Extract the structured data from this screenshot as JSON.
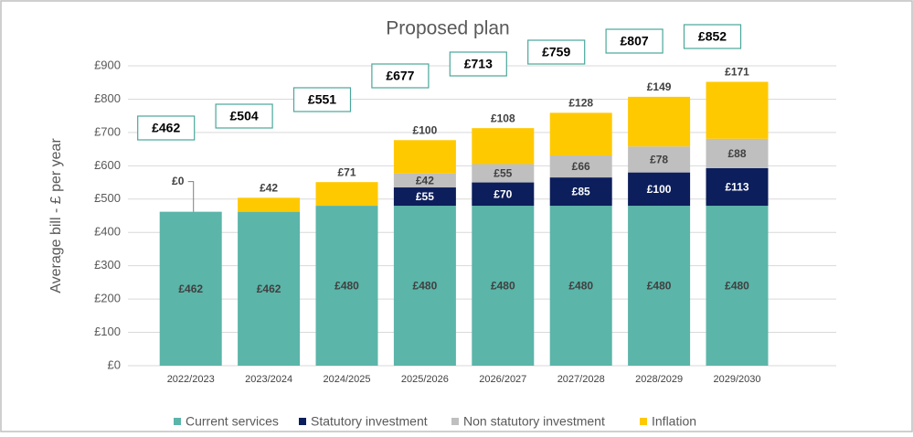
{
  "chart_data": {
    "type": "stacked_bar",
    "title": "Proposed plan",
    "ylabel": "Average bill - £ per year",
    "categories": [
      "2022/2023",
      "2023/2024",
      "2024/2025",
      "2025/2026",
      "2026/2027",
      "2027/2028",
      "2028/2029",
      "2029/2030"
    ],
    "series": [
      {
        "name": "Current services",
        "color": "#5bb5a9",
        "values": [
          462,
          462,
          480,
          480,
          480,
          480,
          480,
          480
        ],
        "value_labels": [
          "£462",
          "£462",
          "£480",
          "£480",
          "£480",
          "£480",
          "£480",
          "£480"
        ]
      },
      {
        "name": "Statutory investment",
        "color": "#0c1e5b",
        "values": [
          null,
          null,
          null,
          55,
          70,
          85,
          100,
          113
        ],
        "value_labels": [
          null,
          null,
          null,
          "£55",
          "£70",
          "£85",
          "£100",
          "£113"
        ]
      },
      {
        "name": "Non statutory investment",
        "color": "#bfbfbf",
        "values": [
          null,
          null,
          null,
          42,
          55,
          66,
          78,
          88
        ],
        "value_labels": [
          null,
          null,
          null,
          "£42",
          "£55",
          "£66",
          "£78",
          "£88"
        ]
      },
      {
        "name": "Inflation",
        "color": "#ffc900",
        "values": [
          0,
          42,
          71,
          100,
          108,
          128,
          149,
          171
        ],
        "value_labels": [
          "£0",
          "£42",
          "£71",
          "£100",
          "£108",
          "£128",
          "£149",
          "£171"
        ]
      }
    ],
    "totals": [
      462,
      504,
      551,
      677,
      713,
      759,
      807,
      852
    ],
    "total_labels": [
      "£462",
      "£504",
      "£551",
      "£677",
      "£713",
      "£759",
      "£807",
      "£852"
    ],
    "ylim": [
      0,
      900
    ],
    "yticks": [
      {
        "value": 0,
        "label": "£0"
      },
      {
        "value": 100,
        "label": "£100"
      },
      {
        "value": 200,
        "label": "£200"
      },
      {
        "value": 300,
        "label": "£300"
      },
      {
        "value": 400,
        "label": "£400"
      },
      {
        "value": 500,
        "label": "£500"
      },
      {
        "value": 600,
        "label": "£600"
      },
      {
        "value": 700,
        "label": "£700"
      },
      {
        "value": 800,
        "label": "£800"
      },
      {
        "value": 900,
        "label": "£900"
      }
    ],
    "grid": true,
    "legend": "bottom"
  }
}
